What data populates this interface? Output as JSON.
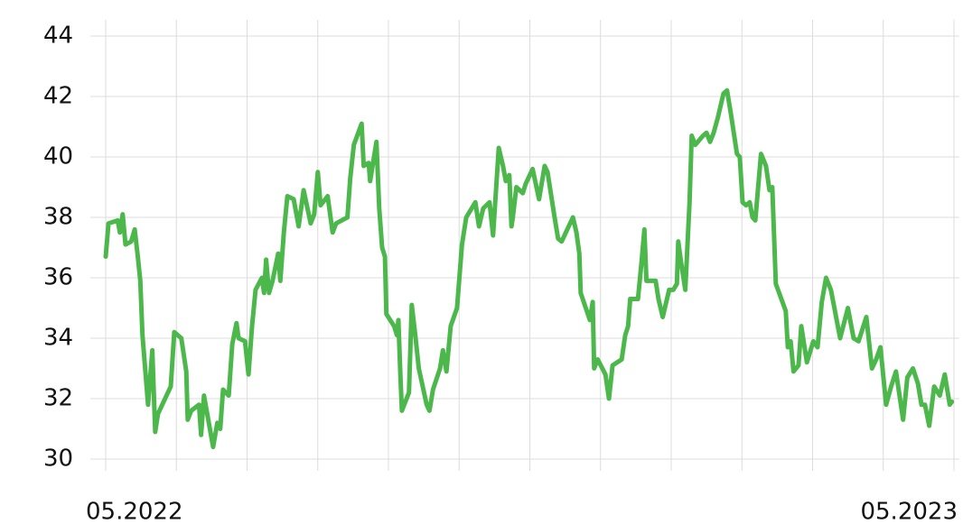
{
  "chart_data": {
    "type": "line",
    "color": "#4cb84c",
    "grid": true,
    "xlim": [
      0,
      12
    ],
    "xticks": [
      {
        "value": 0,
        "label": "05.2022"
      },
      {
        "value": 12,
        "label": "05.2023"
      }
    ],
    "xgrid": [
      0,
      1,
      2,
      3,
      4,
      5,
      6,
      7,
      8,
      9,
      10,
      11,
      12
    ],
    "ylim": [
      30,
      44
    ],
    "yticks": [
      30,
      32,
      34,
      36,
      38,
      40,
      42,
      44
    ],
    "x": [
      0,
      0.04,
      0.17,
      0.2,
      0.24,
      0.28,
      0.36,
      0.41,
      0.45,
      0.49,
      0.52,
      0.6,
      0.66,
      0.7,
      0.74,
      0.92,
      0.97,
      1.07,
      1.14,
      1.16,
      1.21,
      1.32,
      1.35,
      1.39,
      1.52,
      1.58,
      1.62,
      1.66,
      1.74,
      1.79,
      1.85,
      1.88,
      1.97,
      2.02,
      2.07,
      2.12,
      2.21,
      2.24,
      2.27,
      2.31,
      2.36,
      2.44,
      2.47,
      2.52,
      2.57,
      2.66,
      2.73,
      2.8,
      2.9,
      2.95,
      3.0,
      3.04,
      3.14,
      3.21,
      3.26,
      3.42,
      3.46,
      3.51,
      3.62,
      3.65,
      3.72,
      3.74,
      3.83,
      3.87,
      3.91,
      3.95,
      3.97,
      4.08,
      4.12,
      4.14,
      4.17,
      4.19,
      4.29,
      4.33,
      4.38,
      4.43,
      4.54,
      4.58,
      4.63,
      4.73,
      4.77,
      4.82,
      4.88,
      4.97,
      5.04,
      5.1,
      5.23,
      5.28,
      5.34,
      5.43,
      5.48,
      5.56,
      5.62,
      5.66,
      5.71,
      5.74,
      5.76,
      5.81,
      5.9,
      5.94,
      6.04,
      6.13,
      6.21,
      6.25,
      6.35,
      6.4,
      6.45,
      6.61,
      6.66,
      6.7,
      6.72,
      6.85,
      6.89,
      6.91,
      6.96,
      7.07,
      7.12,
      7.17,
      7.3,
      7.35,
      7.39,
      7.42,
      7.53,
      7.58,
      7.62,
      7.65,
      7.78,
      7.82,
      7.88,
      7.97,
      8.03,
      8.08,
      8.1,
      8.14,
      8.2,
      8.26,
      8.29,
      8.34,
      8.45,
      8.5,
      8.55,
      8.6,
      8.66,
      8.74,
      8.79,
      8.84,
      8.93,
      8.97,
      9.01,
      9.06,
      9.11,
      9.15,
      9.19,
      9.27,
      9.34,
      9.39,
      9.43,
      9.48,
      9.62,
      9.65,
      9.69,
      9.73,
      9.8,
      9.84,
      9.92,
      10.01,
      10.07,
      10.13,
      10.19,
      10.26,
      10.39,
      10.5,
      10.58,
      10.65,
      10.76,
      10.84,
      10.9,
      10.96,
      11.04,
      11.11,
      11.18,
      11.28,
      11.34,
      11.42,
      11.49,
      11.54,
      11.59,
      11.65,
      11.72,
      11.8,
      11.87,
      11.94,
      11.97
    ],
    "values": [
      36.7,
      37.8,
      37.9,
      37.5,
      38.1,
      37.1,
      37.2,
      37.6,
      36.8,
      35.9,
      34.1,
      31.8,
      33.6,
      30.9,
      31.5,
      32.4,
      34.2,
      34.0,
      32.9,
      31.3,
      31.6,
      31.8,
      30.8,
      32.1,
      30.4,
      31.2,
      31.0,
      32.3,
      32.1,
      33.8,
      34.5,
      34.0,
      33.9,
      32.8,
      34.4,
      35.6,
      36.0,
      35.5,
      36.6,
      35.5,
      35.9,
      36.8,
      35.9,
      37.5,
      38.7,
      38.6,
      37.7,
      38.9,
      37.8,
      38.1,
      39.5,
      38.4,
      38.7,
      37.5,
      37.8,
      38.0,
      39.3,
      40.4,
      41.1,
      39.7,
      39.8,
      39.2,
      40.5,
      38.3,
      37.0,
      36.7,
      34.8,
      34.4,
      34.1,
      34.6,
      32.7,
      31.6,
      32.2,
      35.1,
      34.1,
      33.0,
      31.8,
      31.6,
      32.3,
      33.0,
      33.6,
      32.9,
      34.4,
      35.0,
      37.1,
      38.0,
      38.5,
      37.7,
      38.3,
      38.5,
      37.4,
      40.3,
      39.7,
      39.2,
      39.4,
      37.7,
      38.0,
      39.0,
      38.8,
      39.1,
      39.6,
      38.6,
      39.7,
      39.5,
      38.0,
      37.3,
      37.2,
      38.0,
      37.5,
      36.8,
      35.5,
      34.6,
      35.2,
      33.0,
      33.3,
      32.8,
      32.0,
      33.1,
      33.3,
      34.1,
      34.4,
      35.3,
      35.3,
      36.5,
      37.6,
      35.9,
      35.9,
      35.3,
      34.7,
      35.6,
      35.6,
      35.8,
      37.2,
      36.5,
      35.6,
      38.5,
      40.7,
      40.4,
      40.7,
      40.8,
      40.5,
      40.8,
      41.3,
      42.1,
      42.2,
      41.5,
      40.1,
      40.0,
      38.5,
      38.4,
      38.5,
      38.0,
      37.9,
      40.1,
      39.7,
      38.9,
      39.0,
      35.8,
      34.9,
      33.7,
      33.9,
      32.9,
      33.1,
      34.4,
      33.2,
      33.9,
      33.7,
      35.2,
      36.0,
      35.6,
      34.0,
      35.0,
      34.0,
      33.9,
      34.7,
      33.0,
      33.3,
      33.7,
      31.8,
      32.4,
      32.9,
      31.3,
      32.7,
      33.0,
      32.5,
      31.8,
      31.8,
      31.1,
      32.4,
      32.1,
      32.8,
      31.8,
      31.9
    ]
  }
}
